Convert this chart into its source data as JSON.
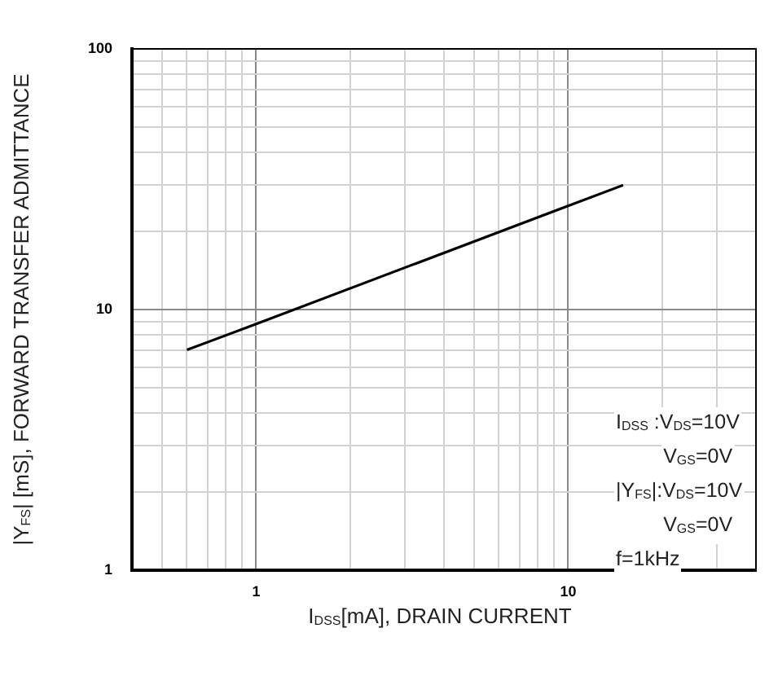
{
  "chart_data": {
    "type": "line",
    "xlabel": "I$_{DSS}$[mA], DRAIN CURRENT",
    "ylabel": "|Y$_{FS}$| [mS], FORWARD TRANSFER ADMITTANCE",
    "x": [
      0.6,
      1,
      10,
      15
    ],
    "series": [
      {
        "color": "#000000",
        "values": [
          7,
          8.8,
          25,
          30
        ]
      }
    ],
    "log": "xy",
    "xlim": [
      0.4,
      40
    ],
    "ylim": [
      1,
      100
    ],
    "xticks": [
      {
        "value": 0.5,
        "label": null
      },
      {
        "value": 0.6,
        "label": null
      },
      {
        "value": 0.7,
        "label": null
      },
      {
        "value": 0.8,
        "label": null
      },
      {
        "value": 0.9,
        "label": null
      },
      1,
      {
        "value": 2,
        "label": null
      },
      {
        "value": 3,
        "label": null
      },
      {
        "value": 4,
        "label": null
      },
      {
        "value": 5,
        "label": null
      },
      {
        "value": 6,
        "label": null
      },
      {
        "value": 7,
        "label": null
      },
      {
        "value": 8,
        "label": null
      },
      {
        "value": 9,
        "label": null
      },
      10,
      {
        "value": 20,
        "label": null
      },
      {
        "value": 30,
        "label": null
      },
      {
        "value": 40,
        "label": null
      }
    ],
    "yticks": [
      1,
      {
        "value": 2,
        "label": null
      },
      {
        "value": 3,
        "label": null
      },
      {
        "value": 4,
        "label": null
      },
      {
        "value": 5,
        "label": null
      },
      {
        "value": 6,
        "label": null
      },
      {
        "value": 7,
        "label": null
      },
      {
        "value": 8,
        "label": null
      },
      {
        "value": 9,
        "label": null
      },
      10,
      {
        "value": 20,
        "label": null
      },
      {
        "value": 30,
        "label": null
      },
      {
        "value": 40,
        "label": null
      },
      {
        "value": 50,
        "label": null
      },
      {
        "value": 60,
        "label": null
      },
      {
        "value": 70,
        "label": null
      },
      {
        "value": 80,
        "label": null
      },
      {
        "value": 90,
        "label": null
      },
      100
    ],
    "grid": true,
    "legend": false,
    "marker": "none",
    "line_style": "solid",
    "annotations": [
      "I$_{DSS}$ :V$_{DS}$=10V",
      "V$_{GS}$=0V",
      "|Y$_{FS}$|:V$_{DS}$=10V",
      "V$_{GS}$=0V",
      "f=1kHz"
    ]
  }
}
